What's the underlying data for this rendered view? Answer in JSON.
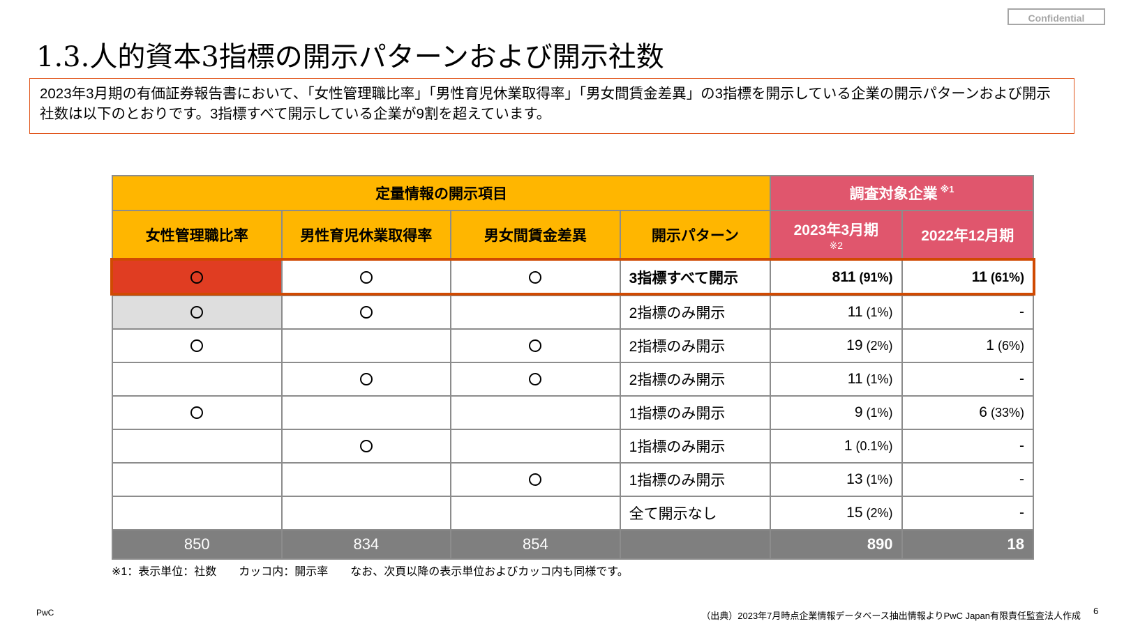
{
  "confidential_label": "Confidential",
  "title": "1.3.人的資本3指標の開示パターンおよび開示社数",
  "intro_text": "2023年3月期の有価証券報告書において、「女性管理職比率」「男性育児休業取得率」「男女間賃金差異」の3指標を開示している企業の開示パターンおよび開示社数は以下のとおりです。3指標すべて開示している企業が9割を超えています。",
  "table": {
    "group_header_left": "定量情報の開示項目",
    "group_header_right": "調査対象企業",
    "group_header_right_note": "※1",
    "columns": {
      "col1": "女性管理職比率",
      "col2": "男性育児休業取得率",
      "col3": "男女間賃金差異",
      "col4": "開示パターン",
      "col5": "2023年3月期",
      "col5_note": "※2",
      "col6": "2022年12月期"
    },
    "rows": [
      {
        "c1": "O",
        "c2": "O",
        "c3": "O",
        "pattern": "3指標すべて開示",
        "v2023": "811",
        "p2023": "(91%)",
        "v2022": "11",
        "p2022": "(61%)"
      },
      {
        "c1": "O",
        "c2": "O",
        "c3": "",
        "pattern": "2指標のみ開示",
        "v2023": "11",
        "p2023": "(1%)",
        "v2022": "-",
        "p2022": ""
      },
      {
        "c1": "O",
        "c2": "",
        "c3": "O",
        "pattern": "2指標のみ開示",
        "v2023": "19",
        "p2023": "(2%)",
        "v2022": "1",
        "p2022": "(6%)"
      },
      {
        "c1": "",
        "c2": "O",
        "c3": "O",
        "pattern": "2指標のみ開示",
        "v2023": "11",
        "p2023": "(1%)",
        "v2022": "-",
        "p2022": ""
      },
      {
        "c1": "O",
        "c2": "",
        "c3": "",
        "pattern": "1指標のみ開示",
        "v2023": "9",
        "p2023": "(1%)",
        "v2022": "6",
        "p2022": "(33%)"
      },
      {
        "c1": "",
        "c2": "O",
        "c3": "",
        "pattern": "1指標のみ開示",
        "v2023": "1",
        "p2023": "(0.1%)",
        "v2022": "-",
        "p2022": ""
      },
      {
        "c1": "",
        "c2": "",
        "c3": "O",
        "pattern": "1指標のみ開示",
        "v2023": "13",
        "p2023": "(1%)",
        "v2022": "-",
        "p2022": ""
      },
      {
        "c1": "",
        "c2": "",
        "c3": "",
        "pattern": "全て開示なし",
        "v2023": "15",
        "p2023": "(2%)",
        "v2022": "-",
        "p2022": ""
      }
    ],
    "totals": {
      "c1": "850",
      "c2": "834",
      "c3": "854",
      "pattern": "",
      "v2023": "890",
      "v2022": "18"
    }
  },
  "footnote": "※1：表示単位：社数　　カッコ内：開示率　　なお、次頁以降の表示単位およびカッコ内も同様です。",
  "brand": "PwC",
  "source": "（出典）2023年7月時点企業情報データベース抽出情報よりPwC Japan有限責任監査法人作成",
  "page_number": "6",
  "colors": {
    "orange": "#ffb600",
    "pink": "#e0566d",
    "red": "#e03d22",
    "highlight": "#d04a02",
    "gray": "#7f7f7f"
  }
}
